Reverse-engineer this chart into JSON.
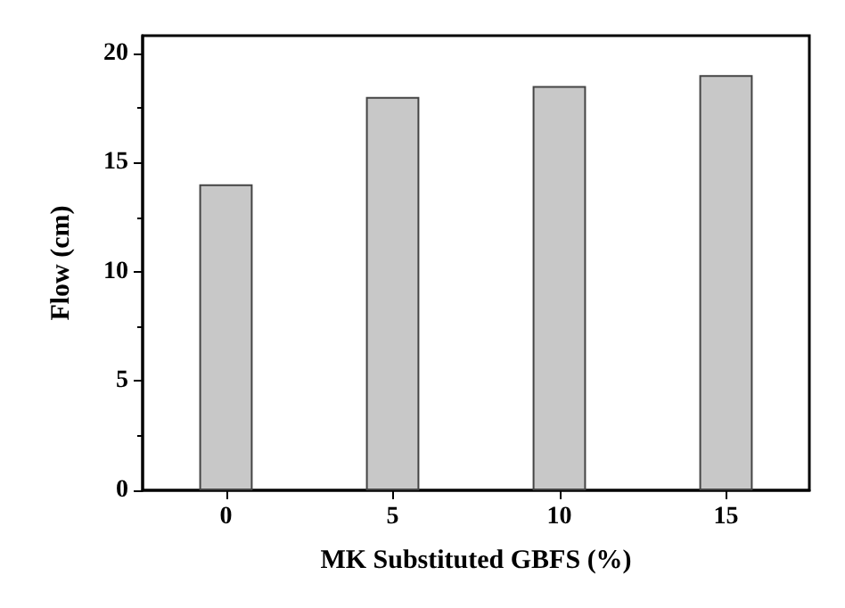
{
  "chart_data": {
    "type": "bar",
    "xlabel": "MK Substituted GBFS (%)",
    "ylabel": "Flow (cm)",
    "categories": [
      "0",
      "5",
      "10",
      "15"
    ],
    "values": [
      14,
      18,
      18.5,
      19
    ],
    "color": "#c8c8c8",
    "ylim": [
      0,
      20.8
    ],
    "yticks": [
      0,
      5,
      10,
      15,
      20
    ],
    "grid": false
  }
}
